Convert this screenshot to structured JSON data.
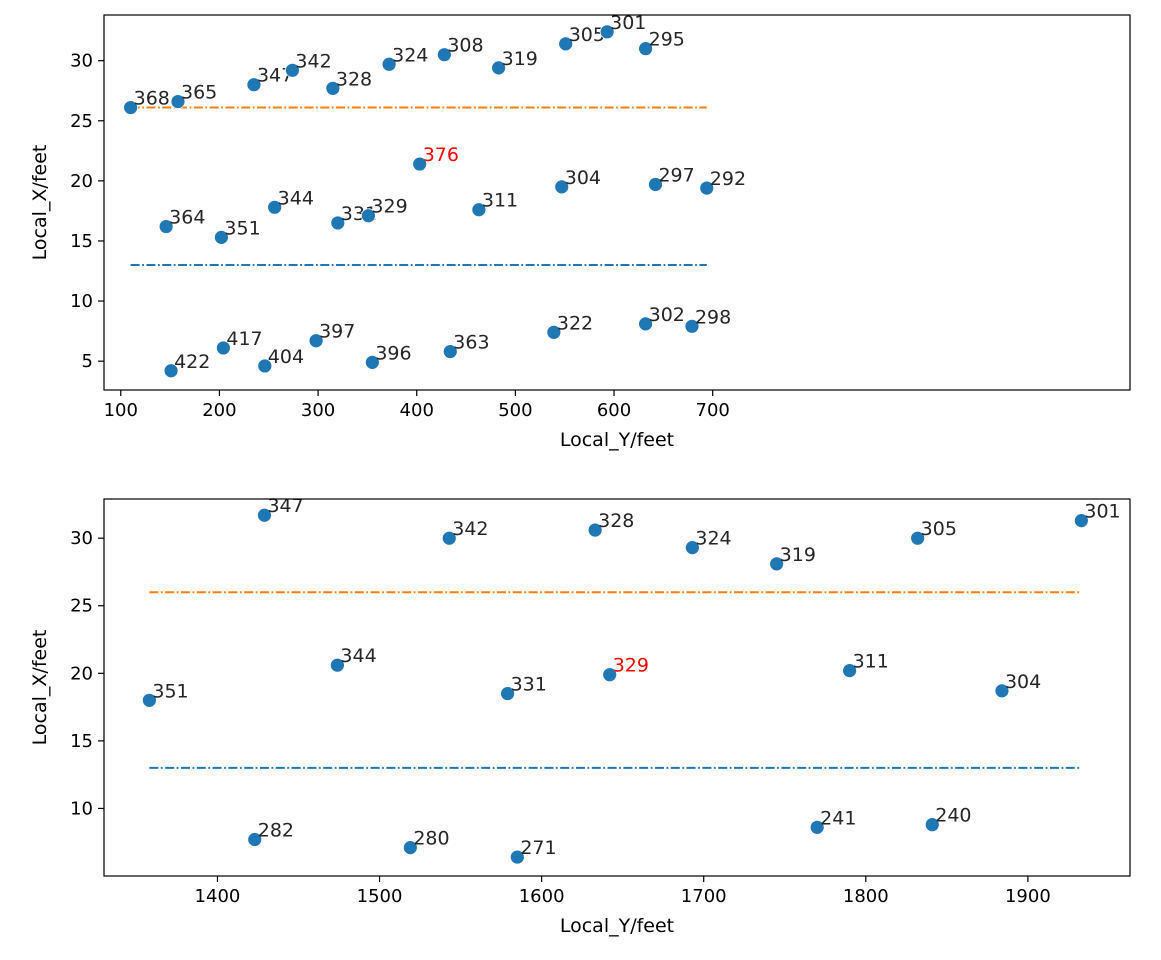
{
  "colors": {
    "points": "#1f77b4",
    "line_lower": "#1f77b4",
    "line_upper": "#ff7f0e",
    "highlight_label": "#ff0000",
    "label": "#262626",
    "axis": "#000000"
  },
  "chart_data": [
    {
      "type": "scatter",
      "title": "",
      "xlabel": "Local_Y/feet",
      "ylabel": "Local_X/feet",
      "xlim": [
        83,
        1123
      ],
      "ylim": [
        2.6,
        33.8
      ],
      "xticks": [
        100,
        200,
        300,
        400,
        500,
        600,
        700
      ],
      "yticks": [
        5,
        10,
        15,
        20,
        25,
        30
      ],
      "grid": false,
      "legend": "none",
      "points": [
        {
          "label": "368",
          "x": 110,
          "y": 26.1
        },
        {
          "label": "365",
          "x": 158,
          "y": 26.6
        },
        {
          "label": "347",
          "x": 235,
          "y": 28.0
        },
        {
          "label": "342",
          "x": 274,
          "y": 29.2
        },
        {
          "label": "328",
          "x": 315,
          "y": 27.7
        },
        {
          "label": "324",
          "x": 372,
          "y": 29.7
        },
        {
          "label": "308",
          "x": 428,
          "y": 30.5
        },
        {
          "label": "319",
          "x": 483,
          "y": 29.4
        },
        {
          "label": "305",
          "x": 551,
          "y": 31.4
        },
        {
          "label": "301",
          "x": 593,
          "y": 32.4
        },
        {
          "label": "295",
          "x": 632,
          "y": 31.0
        },
        {
          "label": "376",
          "x": 403,
          "y": 21.4,
          "highlight": true
        },
        {
          "label": "364",
          "x": 146,
          "y": 16.2
        },
        {
          "label": "351",
          "x": 202,
          "y": 15.3
        },
        {
          "label": "344",
          "x": 256,
          "y": 17.8
        },
        {
          "label": "331",
          "x": 320,
          "y": 16.5
        },
        {
          "label": "329",
          "x": 351,
          "y": 17.1
        },
        {
          "label": "311",
          "x": 463,
          "y": 17.6
        },
        {
          "label": "304",
          "x": 547,
          "y": 19.5
        },
        {
          "label": "297",
          "x": 642,
          "y": 19.7
        },
        {
          "label": "292",
          "x": 694,
          "y": 19.4
        },
        {
          "label": "422",
          "x": 151,
          "y": 4.2
        },
        {
          "label": "417",
          "x": 204,
          "y": 6.1
        },
        {
          "label": "404",
          "x": 246,
          "y": 4.6
        },
        {
          "label": "397",
          "x": 298,
          "y": 6.7
        },
        {
          "label": "396",
          "x": 355,
          "y": 4.9
        },
        {
          "label": "363",
          "x": 434,
          "y": 5.8
        },
        {
          "label": "322",
          "x": 539,
          "y": 7.4
        },
        {
          "label": "302",
          "x": 632,
          "y": 8.1
        },
        {
          "label": "298",
          "x": 679,
          "y": 7.9
        }
      ],
      "lines": [
        {
          "y": 26.1,
          "x": [
            110,
            694
          ],
          "color": "#ff7f0e",
          "style": "dash-dot"
        },
        {
          "y": 13.0,
          "x": [
            110,
            694
          ],
          "color": "#1f77b4",
          "style": "dash-dot"
        }
      ]
    },
    {
      "type": "scatter",
      "title": "",
      "xlabel": "Local_Y/feet",
      "ylabel": "Local_X/feet",
      "xlim": [
        1330,
        1963
      ],
      "ylim": [
        5.0,
        32.9
      ],
      "xticks": [
        1400,
        1500,
        1600,
        1700,
        1800,
        1900
      ],
      "yticks": [
        10,
        15,
        20,
        25,
        30
      ],
      "grid": false,
      "legend": "none",
      "points": [
        {
          "label": "347",
          "x": 1429,
          "y": 31.7
        },
        {
          "label": "342",
          "x": 1543,
          "y": 30.0
        },
        {
          "label": "328",
          "x": 1633,
          "y": 30.6
        },
        {
          "label": "324",
          "x": 1693,
          "y": 29.3
        },
        {
          "label": "319",
          "x": 1745,
          "y": 28.1
        },
        {
          "label": "305",
          "x": 1832,
          "y": 30.0
        },
        {
          "label": "301",
          "x": 1933,
          "y": 31.3
        },
        {
          "label": "351",
          "x": 1358,
          "y": 18.0
        },
        {
          "label": "344",
          "x": 1474,
          "y": 20.6
        },
        {
          "label": "331",
          "x": 1579,
          "y": 18.5
        },
        {
          "label": "329",
          "x": 1642,
          "y": 19.9,
          "highlight": true
        },
        {
          "label": "311",
          "x": 1790,
          "y": 20.2
        },
        {
          "label": "304",
          "x": 1884,
          "y": 18.7
        },
        {
          "label": "282",
          "x": 1423,
          "y": 7.7
        },
        {
          "label": "280",
          "x": 1519,
          "y": 7.1
        },
        {
          "label": "271",
          "x": 1585,
          "y": 6.4
        },
        {
          "label": "241",
          "x": 1770,
          "y": 8.6
        },
        {
          "label": "240",
          "x": 1841,
          "y": 8.8
        }
      ],
      "lines": [
        {
          "y": 26.0,
          "x": [
            1358,
            1933
          ],
          "color": "#ff7f0e",
          "style": "dash-dot"
        },
        {
          "y": 13.0,
          "x": [
            1358,
            1933
          ],
          "color": "#1f77b4",
          "style": "dash-dot"
        }
      ]
    }
  ]
}
